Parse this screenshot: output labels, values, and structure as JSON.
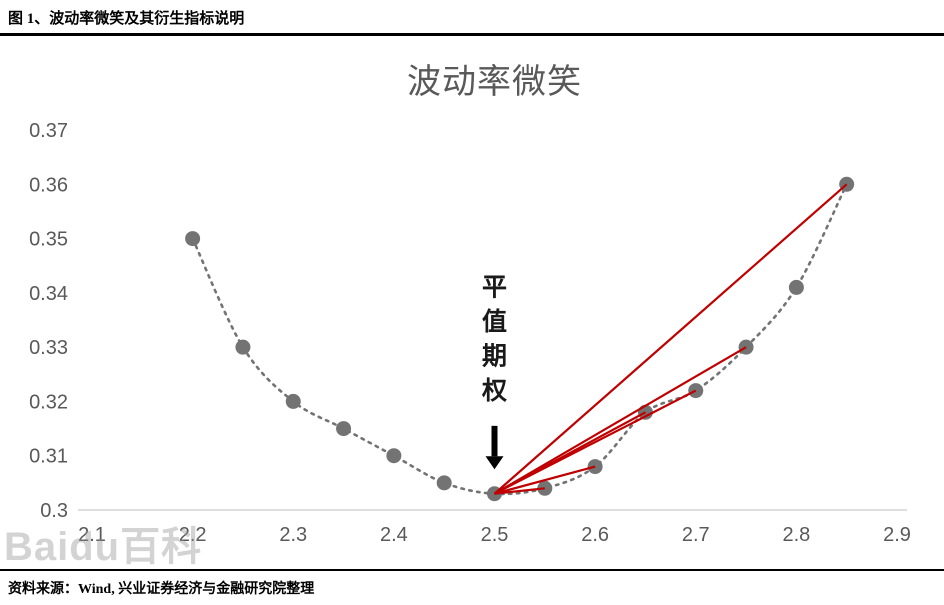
{
  "header": {
    "title": "图 1、波动率微笑及其衍生指标说明"
  },
  "footer": {
    "source": "资料来源：Wind, 兴业证券经济与金融研究院整理"
  },
  "watermark": {
    "text": "Baidu百科"
  },
  "chart_data": {
    "type": "scatter",
    "title": "波动率微笑",
    "x": [
      2.2,
      2.25,
      2.3,
      2.35,
      2.4,
      2.45,
      2.5,
      2.55,
      2.6,
      2.65,
      2.7,
      2.75,
      2.8,
      2.85
    ],
    "y": [
      0.35,
      0.33,
      0.32,
      0.315,
      0.31,
      0.305,
      0.303,
      0.304,
      0.308,
      0.318,
      0.322,
      0.33,
      0.341,
      0.36
    ],
    "xlim": [
      2.1,
      2.9
    ],
    "ylim": [
      0.3,
      0.37
    ],
    "x_ticks": [
      "2.1",
      "2.2",
      "2.3",
      "2.4",
      "2.5",
      "2.6",
      "2.7",
      "2.8",
      "2.9"
    ],
    "y_ticks": [
      "0.3",
      "0.31",
      "0.32",
      "0.33",
      "0.34",
      "0.35",
      "0.36",
      "0.37"
    ],
    "grid": false,
    "legend": null,
    "atm_point": {
      "x": 2.5,
      "y": 0.303
    },
    "red_segments_to": [
      [
        2.55,
        0.304
      ],
      [
        2.6,
        0.308
      ],
      [
        2.65,
        0.318
      ],
      [
        2.7,
        0.322
      ],
      [
        2.75,
        0.33
      ],
      [
        2.85,
        0.36
      ]
    ],
    "annotation": {
      "text": "平值期权",
      "x": 2.5,
      "text_top_y": 0.3395,
      "char_step": 0.00635,
      "arrow_from_y": 0.3155,
      "arrow_to_y": 0.3075
    },
    "colors": {
      "points": "#737373",
      "curve": "#737373",
      "red_lines": "#c00000",
      "axis_text": "#595959",
      "axis_line": "#bfbfbf",
      "title": "#595959",
      "annotation": "#1a1a1a"
    }
  }
}
